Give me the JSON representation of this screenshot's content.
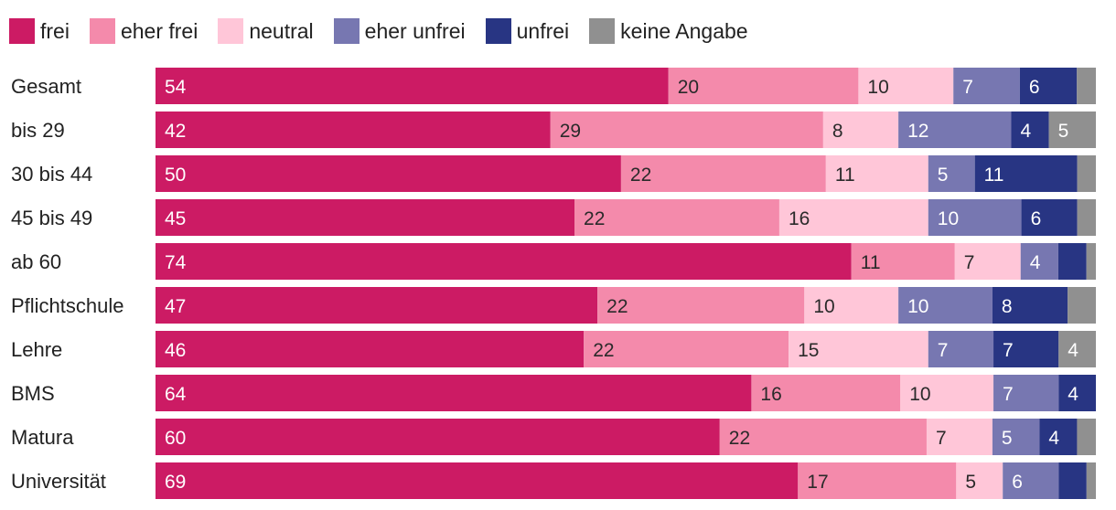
{
  "chart_data": {
    "type": "bar",
    "orientation": "horizontal",
    "stacked": true,
    "normalized": true,
    "legend_position": "top-left",
    "categories": [
      "Gesamt",
      "bis 29",
      "30 bis 44",
      "45 bis 49",
      "ab 60",
      "Pflichtschule",
      "Lehre",
      "BMS",
      "Matura",
      "Universität"
    ],
    "series": [
      {
        "name": "frei",
        "color": "#cc1b64",
        "label_color": "#ffffff",
        "values": [
          54,
          42,
          50,
          45,
          74,
          47,
          46,
          64,
          60,
          69
        ]
      },
      {
        "name": "eher frei",
        "color": "#f48aab",
        "label_color": "#2a2a2a",
        "values": [
          20,
          29,
          22,
          22,
          11,
          22,
          22,
          16,
          22,
          17
        ]
      },
      {
        "name": "neutral",
        "color": "#ffc6d8",
        "label_color": "#2a2a2a",
        "values": [
          10,
          8,
          11,
          16,
          7,
          10,
          15,
          10,
          7,
          5
        ]
      },
      {
        "name": "eher unfrei",
        "color": "#7777b1",
        "label_color": "#ffffff",
        "values": [
          7,
          12,
          5,
          10,
          4,
          10,
          7,
          7,
          5,
          6
        ]
      },
      {
        "name": "unfrei",
        "color": "#283583",
        "label_color": "#ffffff",
        "values": [
          6,
          4,
          11,
          6,
          3,
          8,
          7,
          4,
          4,
          3
        ]
      },
      {
        "name": "keine Angabe",
        "color": "#909090",
        "label_color": "#ffffff",
        "values": [
          2,
          5,
          2,
          2,
          1,
          3,
          4,
          0,
          2,
          1
        ]
      }
    ],
    "data_labels": [
      [
        "54",
        "20",
        "10",
        "7",
        "6",
        ""
      ],
      [
        "42",
        "29",
        "8",
        "12",
        "4",
        "5"
      ],
      [
        "50",
        "22",
        "11",
        "5",
        "11",
        ""
      ],
      [
        "45",
        "22",
        "16",
        "10",
        "6",
        ""
      ],
      [
        "74",
        "11",
        "7",
        "4",
        "",
        ""
      ],
      [
        "47",
        "22",
        "10",
        "10",
        "8",
        ""
      ],
      [
        "46",
        "22",
        "15",
        "7",
        "7",
        "4"
      ],
      [
        "64",
        "16",
        "10",
        "7",
        "4",
        ""
      ],
      [
        "60",
        "22",
        "7",
        "5",
        "4",
        ""
      ],
      [
        "69",
        "17",
        "5",
        "6",
        "",
        ""
      ]
    ]
  }
}
